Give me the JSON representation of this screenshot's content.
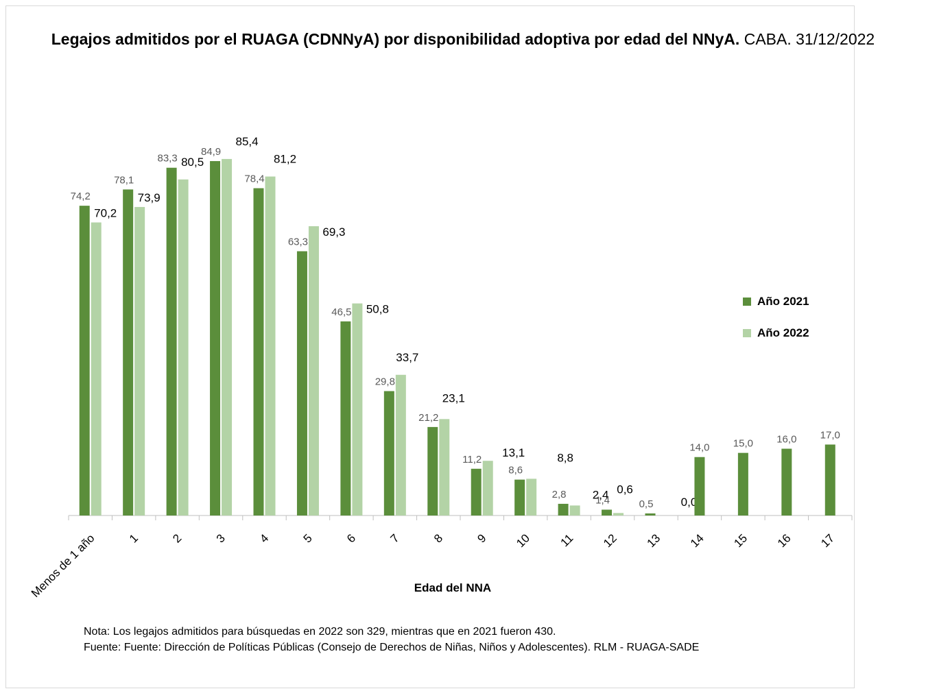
{
  "title_bold": "Legajos admitidos por el RUAGA (CDNNyA) por disponibilidad adoptiva por edad del NNyA.",
  "title_regular": "CABA. 31/12/2022",
  "notes": {
    "line1": "Nota: Los legajos admitidos para búsquedas en 2022 son 329, mientras que en 2021 fueron 430.",
    "line2": "Fuente: Fuente: Dirección de Políticas Públicas (Consejo de Derechos de Niñas, Niños y Adolescentes). RLM - RUAGA-SADE"
  },
  "colors": {
    "series_2021": "#5b8e3b",
    "series_2022": "#b3d3a6",
    "axis": "#bfbfbf",
    "label_2021": "#595959",
    "label_2022": "#000000"
  },
  "chart_data": {
    "type": "bar",
    "title": "Legajos admitidos por el RUAGA (CDNNyA) por disponibilidad adoptiva por edad del NNyA. CABA. 31/12/2022",
    "xlabel": "Edad del NNA",
    "ylabel": "",
    "ylim": [
      0,
      100
    ],
    "grid": false,
    "legend_position": "right",
    "categories": [
      "Menos de 1 año",
      "1",
      "2",
      "3",
      "4",
      "5",
      "6",
      "7",
      "8",
      "9",
      "10",
      "11",
      "12",
      "13",
      "14",
      "15",
      "16",
      "17"
    ],
    "series": [
      {
        "name": "Año 2021",
        "values": [
          74.2,
          78.1,
          83.3,
          84.9,
          78.4,
          63.3,
          46.5,
          29.8,
          21.2,
          11.2,
          8.6,
          2.8,
          1.4,
          0.5,
          14.0,
          15.0,
          16.0,
          17.0
        ],
        "labels": [
          "74,2",
          "78,1",
          "83,3",
          "84,9",
          "78,4",
          "63,3",
          "46,5",
          "29,8",
          "21,2",
          "11,2",
          "8,6",
          "2,8",
          "1,4",
          "0,5",
          "14,0",
          "15,0",
          "16,0",
          "17,0"
        ]
      },
      {
        "name": "Año 2022",
        "values": [
          70.2,
          73.9,
          80.5,
          85.4,
          81.2,
          69.3,
          50.8,
          33.7,
          23.1,
          13.1,
          8.8,
          2.4,
          0.6,
          0.0,
          null,
          null,
          null,
          null
        ],
        "labels": [
          "70,2",
          "73,9",
          "80,5",
          "85,4",
          "81,2",
          "69,3",
          "50,8",
          "33,7",
          "23,1",
          "13,1",
          "8,8",
          "2,4",
          "0,6",
          "0,0",
          "",
          "",
          "",
          ""
        ]
      }
    ]
  }
}
